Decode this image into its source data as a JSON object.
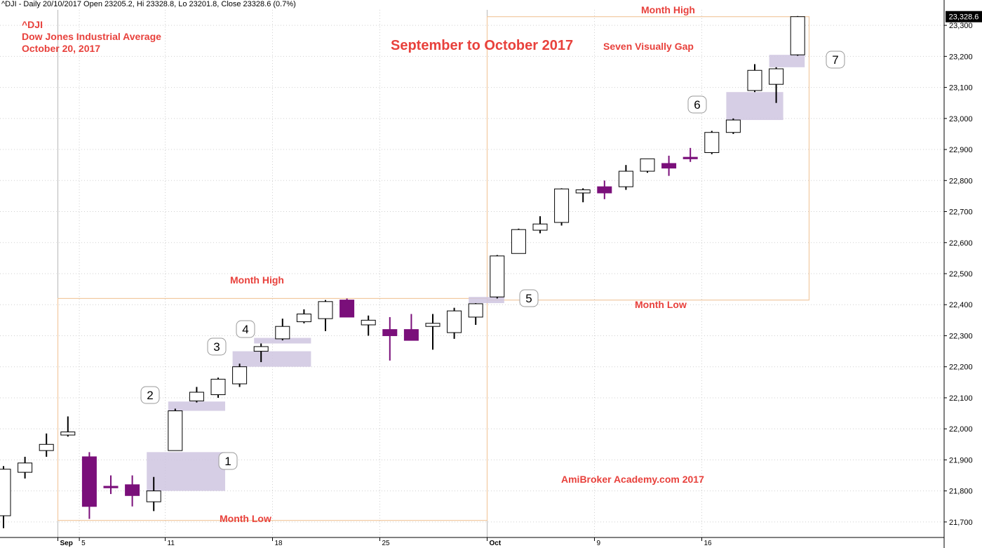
{
  "header": "^DJI - Daily 20/10/2017 Open 23205.2, Hi 23328.8, Lo 23201.8, Close 23328.6 (0.7%)",
  "annotations": {
    "symbol": "^DJI",
    "index_name": "Dow Jones Industrial Average",
    "date": "October 20, 2017",
    "title": "September to October 2017",
    "gap_note": "Seven Visually Gap",
    "month_high": "Month High",
    "month_low": "Month Low",
    "credit": "AmiBroker Academy.com  2017"
  },
  "colors": {
    "up_fill": "#ffffff",
    "down_fill": "#7a0f7a",
    "gap_fill": "#cfc6e0",
    "month_box": "#f2c9a0",
    "annotation": "#e8413c"
  },
  "chart_data": {
    "type": "candlestick",
    "ylim": [
      21650,
      23350
    ],
    "y_ticks": [
      21700,
      21800,
      21900,
      22000,
      22100,
      22200,
      22300,
      22400,
      22500,
      22600,
      22700,
      22800,
      22900,
      23000,
      23100,
      23200,
      23300
    ],
    "y_tick_labels": [
      "21,700",
      "21,800",
      "21,900",
      "22,000",
      "22,100",
      "22,200",
      "22,300",
      "22,400",
      "22,500",
      "22,600",
      "22,700",
      "22,800",
      "22,900",
      "23,000",
      "23,100",
      "23,200",
      "23,300"
    ],
    "last_price_label": "23,328.6",
    "x_labels": [
      {
        "label": "Sep",
        "bar": 3
      },
      {
        "label": "5",
        "bar": 4
      },
      {
        "label": "11",
        "bar": 8
      },
      {
        "label": "18",
        "bar": 13
      },
      {
        "label": "25",
        "bar": 18
      },
      {
        "label": "Oct",
        "bar": 23
      },
      {
        "label": "9",
        "bar": 28
      },
      {
        "label": "16",
        "bar": 33
      }
    ],
    "candles": [
      {
        "o": 21720,
        "h": 21880,
        "l": 21680,
        "c": 21870
      },
      {
        "o": 21860,
        "h": 21910,
        "l": 21840,
        "c": 21890
      },
      {
        "o": 21930,
        "h": 21985,
        "l": 21910,
        "c": 21950
      },
      {
        "o": 21980,
        "h": 22040,
        "l": 21975,
        "c": 21990
      },
      {
        "o": 21910,
        "h": 21925,
        "l": 21710,
        "c": 21750
      },
      {
        "o": 21815,
        "h": 21850,
        "l": 21790,
        "c": 21810
      },
      {
        "o": 21820,
        "h": 21850,
        "l": 21750,
        "c": 21785
      },
      {
        "o": 21765,
        "h": 21845,
        "l": 21735,
        "c": 21800
      },
      {
        "o": 21930,
        "h": 22065,
        "l": 21930,
        "c": 22058
      },
      {
        "o": 22090,
        "h": 22135,
        "l": 22085,
        "c": 22118
      },
      {
        "o": 22110,
        "h": 22165,
        "l": 22100,
        "c": 22160
      },
      {
        "o": 22145,
        "h": 22210,
        "l": 22135,
        "c": 22200
      },
      {
        "o": 22250,
        "h": 22275,
        "l": 22215,
        "c": 22265
      },
      {
        "o": 22290,
        "h": 22355,
        "l": 22285,
        "c": 22330
      },
      {
        "o": 22345,
        "h": 22385,
        "l": 22340,
        "c": 22370
      },
      {
        "o": 22355,
        "h": 22415,
        "l": 22315,
        "c": 22410
      },
      {
        "o": 22415,
        "h": 22420,
        "l": 22360,
        "c": 22360
      },
      {
        "o": 22335,
        "h": 22365,
        "l": 22300,
        "c": 22350
      },
      {
        "o": 22320,
        "h": 22360,
        "l": 22220,
        "c": 22300
      },
      {
        "o": 22320,
        "h": 22370,
        "l": 22285,
        "c": 22285
      },
      {
        "o": 22330,
        "h": 22370,
        "l": 22255,
        "c": 22340
      },
      {
        "o": 22310,
        "h": 22390,
        "l": 22290,
        "c": 22380
      },
      {
        "o": 22360,
        "h": 22405,
        "l": 22335,
        "c": 22403
      },
      {
        "o": 22425,
        "h": 22560,
        "l": 22420,
        "c": 22557
      },
      {
        "o": 22565,
        "h": 22645,
        "l": 22565,
        "c": 22642
      },
      {
        "o": 22640,
        "h": 22685,
        "l": 22630,
        "c": 22660
      },
      {
        "o": 22665,
        "h": 22775,
        "l": 22655,
        "c": 22773
      },
      {
        "o": 22760,
        "h": 22775,
        "l": 22730,
        "c": 22770
      },
      {
        "o": 22780,
        "h": 22800,
        "l": 22740,
        "c": 22760
      },
      {
        "o": 22780,
        "h": 22850,
        "l": 22770,
        "c": 22830
      },
      {
        "o": 22830,
        "h": 22870,
        "l": 22825,
        "c": 22870
      },
      {
        "o": 22855,
        "h": 22880,
        "l": 22815,
        "c": 22840
      },
      {
        "o": 22875,
        "h": 22905,
        "l": 22860,
        "c": 22870
      },
      {
        "o": 22890,
        "h": 22960,
        "l": 22885,
        "c": 22955
      },
      {
        "o": 22955,
        "h": 23000,
        "l": 22950,
        "c": 22995
      },
      {
        "o": 23090,
        "h": 23175,
        "l": 23085,
        "c": 23155
      },
      {
        "o": 23110,
        "h": 23165,
        "l": 23050,
        "c": 23160
      },
      {
        "o": 23205,
        "h": 23330,
        "l": 23202,
        "c": 23328
      }
    ],
    "gaps": [
      {
        "label": "1",
        "bar_start": 7,
        "bar_end": 10,
        "low": 21800,
        "high": 21925
      },
      {
        "label": "2",
        "bar_start": 8,
        "bar_end": 10,
        "low": 22058,
        "high": 22088
      },
      {
        "label": "3",
        "bar_start": 11,
        "bar_end": 14,
        "low": 22200,
        "high": 22250
      },
      {
        "label": "4",
        "bar_start": 12,
        "bar_end": 14,
        "low": 22275,
        "high": 22293
      },
      {
        "label": "5",
        "bar_start": 22,
        "bar_end": 23,
        "low": 22405,
        "high": 22425
      },
      {
        "label": "6",
        "bar_start": 34,
        "bar_end": 36,
        "low": 22995,
        "high": 23085
      },
      {
        "label": "7",
        "bar_start": 36,
        "bar_end": 37,
        "low": 23165,
        "high": 23205
      }
    ],
    "month_boxes": [
      {
        "name": "September",
        "bar_start": 3,
        "bar_end": 23,
        "low": 21705,
        "high": 22420
      },
      {
        "name": "October",
        "bar_start": 23,
        "bar_end": 38,
        "low": 22415,
        "high": 23328
      }
    ],
    "grid": true
  }
}
